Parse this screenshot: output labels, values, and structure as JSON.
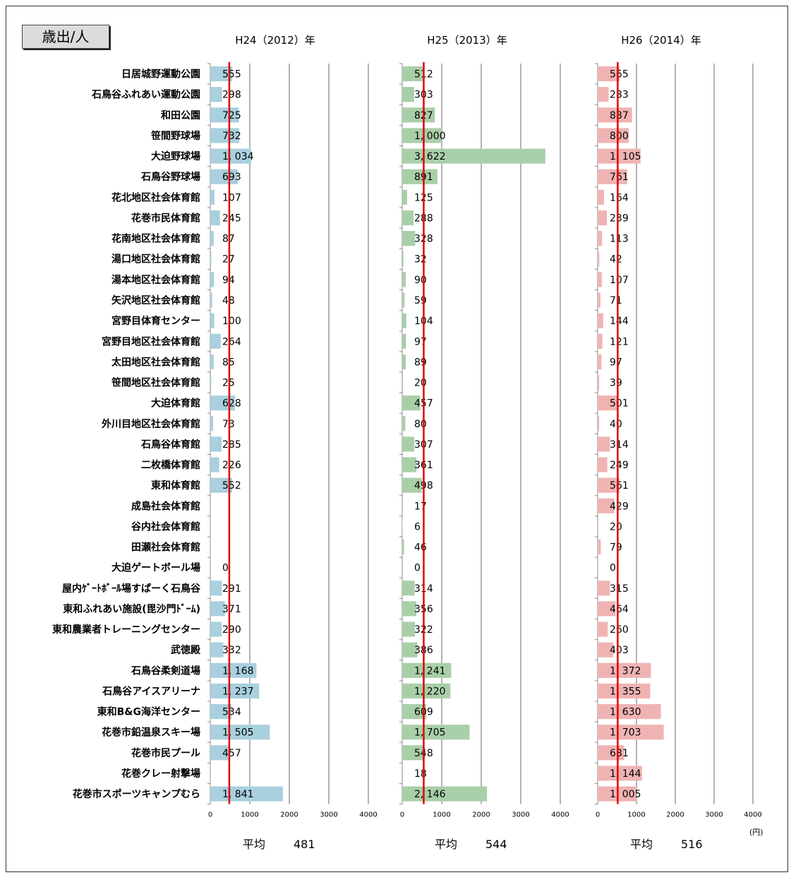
{
  "header": {
    "label": "歳出/人"
  },
  "unit_label": "(円)",
  "avg_label": "平均",
  "colors": {
    "h24": "#a9d0de",
    "h25": "#a9cfa9",
    "h26": "#f0b3b3",
    "avg_line": "#e00000",
    "grid": "#8c8c8c"
  },
  "chart_data": {
    "type": "bar",
    "orientation": "horizontal",
    "xlim": [
      0,
      4000
    ],
    "ticks": [
      0,
      1000,
      2000,
      3000,
      4000
    ],
    "grid": true,
    "categories": [
      "日居城野運動公園",
      "石鳥谷ふれあい運動公園",
      "和田公園",
      "笹間野球場",
      "大迫野球場",
      "石鳥谷野球場",
      "花北地区社会体育館",
      "花巻市民体育館",
      "花南地区社会体育館",
      "湯口地区社会体育館",
      "湯本地区社会体育館",
      "矢沢地区社会体育館",
      "宮野目体育センター",
      "宮野目地区社会体育館",
      "太田地区社会体育館",
      "笹間地区社会体育館",
      "大迫体育館",
      "外川目地区社会体育館",
      "石鳥谷体育館",
      "二枚橋体育館",
      "東和体育館",
      "成島社会体育館",
      "谷内社会体育館",
      "田瀬社会体育館",
      "大迫ゲートボール場",
      "屋内ｹﾞｰﾄﾎﾞｰﾙ場すぱーく石鳥谷",
      "東和ふれあい施設(毘沙門ﾄﾞｰﾑ)",
      "東和農業者トレーニングセンター",
      "武徳殿",
      "石鳥谷柔剣道場",
      "石鳥谷アイスアリーナ",
      "東和B&G海洋センター",
      "花巻市鉛温泉スキー場",
      "花巻市民プール",
      "花巻クレー射撃場",
      "花巻市スポーツキャンプむら"
    ],
    "series": [
      {
        "name": "H24（2012）年",
        "values": [
          555,
          298,
          725,
          732,
          1034,
          693,
          107,
          245,
          87,
          27,
          94,
          48,
          100,
          264,
          85,
          25,
          628,
          73,
          285,
          226,
          552,
          null,
          null,
          null,
          0,
          291,
          371,
          290,
          332,
          1168,
          1237,
          534,
          1505,
          457,
          null,
          1841
        ],
        "labels": [
          "555",
          "298",
          "725",
          "732",
          "1, 034",
          "693",
          "107",
          "245",
          "87",
          "27",
          "94",
          "48",
          "100",
          "264",
          "85",
          "25",
          "628",
          "73",
          "285",
          "226",
          "552",
          "",
          "",
          "",
          "0",
          "291",
          "371",
          "290",
          "332",
          "1, 168",
          "1, 237",
          "534",
          "1, 505",
          "457",
          "",
          "1, 841"
        ],
        "average": 481,
        "average_label": "481"
      },
      {
        "name": "H25（2013）年",
        "values": [
          512,
          303,
          827,
          1000,
          3622,
          891,
          125,
          288,
          328,
          32,
          90,
          59,
          104,
          97,
          89,
          20,
          457,
          80,
          307,
          361,
          498,
          17,
          6,
          46,
          0,
          314,
          356,
          322,
          386,
          1241,
          1220,
          609,
          1705,
          548,
          18,
          2146
        ],
        "labels": [
          "512",
          "303",
          "827",
          "1, 000",
          "3, 622",
          "891",
          "125",
          "288",
          "328",
          "32",
          "90",
          "59",
          "104",
          "97",
          "89",
          "20",
          "457",
          "80",
          "307",
          "361",
          "498",
          "17",
          "6",
          "46",
          "0",
          "314",
          "356",
          "322",
          "386",
          "1, 241",
          "1, 220",
          "609",
          "1, 705",
          "548",
          "18",
          "2, 146"
        ],
        "average": 544,
        "average_label": "544"
      },
      {
        "name": "H26（2014）年",
        "values": [
          565,
          283,
          887,
          800,
          1105,
          761,
          164,
          239,
          113,
          42,
          107,
          71,
          144,
          121,
          97,
          39,
          501,
          40,
          314,
          249,
          561,
          429,
          20,
          79,
          0,
          315,
          464,
          260,
          403,
          1372,
          1355,
          1630,
          1703,
          681,
          1144,
          1005
        ],
        "labels": [
          "565",
          "283",
          "887",
          "800",
          "1, 105",
          "761",
          "164",
          "239",
          "113",
          "42",
          "107",
          "71",
          "144",
          "121",
          "97",
          "39",
          "501",
          "40",
          "314",
          "249",
          "561",
          "429",
          "20",
          "79",
          "0",
          "315",
          "464",
          "260",
          "403",
          "1, 372",
          "1, 355",
          "1, 630",
          "1, 703",
          "681",
          "1, 144",
          "1, 005"
        ],
        "average": 516,
        "average_label": "516"
      }
    ]
  }
}
